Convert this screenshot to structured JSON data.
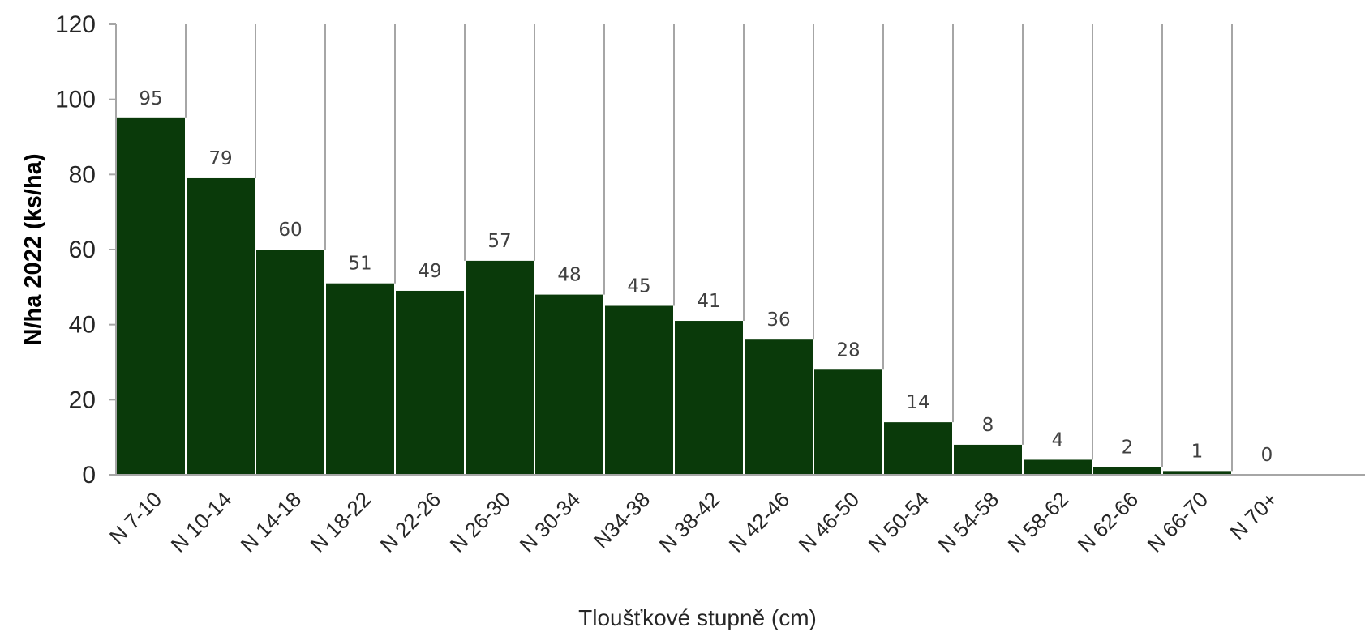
{
  "chart_data": {
    "type": "bar",
    "title": "",
    "xlabel": "Tloušťkové stupně (cm)",
    "ylabel": "N/ha 2022 (ks/ha)",
    "ylim": [
      0,
      120
    ],
    "yticks": [
      0,
      20,
      40,
      60,
      80,
      100,
      120
    ],
    "categories": [
      "N 7-10",
      "N 10-14",
      "N 14-18",
      "N 18-22",
      "N 22-26",
      "N 26-30",
      "N 30-34",
      "N34-38",
      "N 38-42",
      "N 42-46",
      "N 46-50",
      "N 50-54",
      "N 54-58",
      "N 58-62",
      "N 62-66",
      "N 66-70",
      "N 70+"
    ],
    "values": [
      95,
      79,
      60,
      51,
      49,
      57,
      48,
      45,
      41,
      36,
      28,
      14,
      8,
      4,
      2,
      1,
      0
    ],
    "data_labels": [
      "95",
      "79",
      "60",
      "51",
      "49",
      "57",
      "48",
      "45",
      "41",
      "36",
      "28",
      "14",
      "8",
      "4",
      "2",
      "1",
      "0"
    ],
    "bar_color": "#0a3a0a",
    "separator_color": "#a6a6a6",
    "axis_color": "#a6a6a6",
    "grid": false,
    "legend": "none"
  }
}
